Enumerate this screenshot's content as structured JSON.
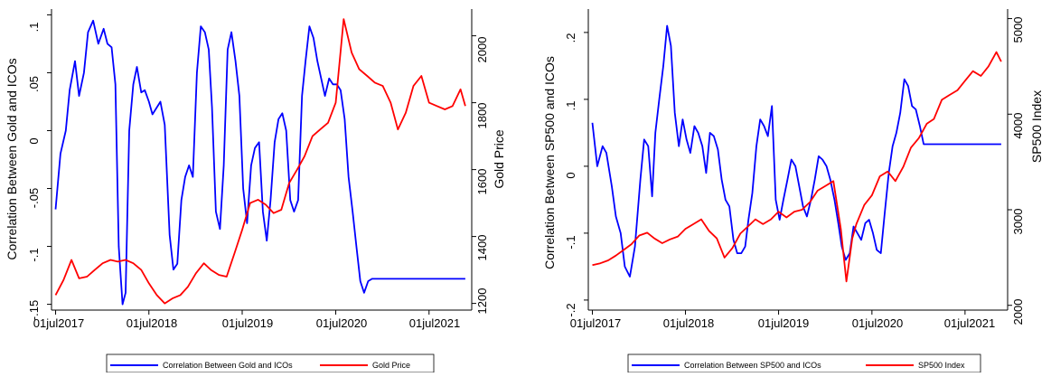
{
  "chart_data": [
    {
      "type": "line",
      "xlabel": "",
      "ylabel_left": "Correlation Between Gold and ICOs",
      "ylabel_right": "Gold Price",
      "x_ticks": [
        "01jul2017",
        "01jul2018",
        "01jul2019",
        "01jul2020",
        "01jul2021"
      ],
      "y_left_ticks": [
        ".1",
        ".05",
        "0",
        "-.05",
        "-.1",
        "-.15"
      ],
      "y_left_tick_values": [
        0.1,
        0.05,
        0,
        -0.05,
        -0.1,
        -0.15
      ],
      "y_right_ticks": [
        "2000",
        "1800",
        "1600",
        "1400",
        "1200"
      ],
      "y_right_tick_values": [
        2000,
        1800,
        1600,
        1400,
        1200
      ],
      "ylim_left": [
        -0.155,
        0.105
      ],
      "ylim_right": [
        1180,
        2080
      ],
      "xlim": [
        "2017-06-15",
        "2021-12-15"
      ],
      "grid": false,
      "legend_placement": "bottom",
      "series": [
        {
          "name": "Correlation Between Gold and ICOs",
          "axis": "left",
          "color": "#0000ff",
          "x": [
            "2017-07-01",
            "2017-07-20",
            "2017-08-10",
            "2017-08-25",
            "2017-09-15",
            "2017-10-01",
            "2017-10-20",
            "2017-11-05",
            "2017-11-25",
            "2017-12-15",
            "2018-01-05",
            "2018-01-20",
            "2018-02-05",
            "2018-02-20",
            "2018-03-05",
            "2018-03-20",
            "2018-04-01",
            "2018-04-15",
            "2018-05-01",
            "2018-05-15",
            "2018-06-01",
            "2018-06-15",
            "2018-07-01",
            "2018-07-15",
            "2018-08-01",
            "2018-08-15",
            "2018-09-01",
            "2018-09-20",
            "2018-10-05",
            "2018-10-20",
            "2018-11-05",
            "2018-11-20",
            "2018-12-05",
            "2018-12-20",
            "2019-01-05",
            "2019-01-20",
            "2019-02-05",
            "2019-02-20",
            "2019-03-05",
            "2019-03-20",
            "2019-04-05",
            "2019-04-20",
            "2019-05-05",
            "2019-05-20",
            "2019-06-05",
            "2019-06-20",
            "2019-07-05",
            "2019-07-20",
            "2019-08-05",
            "2019-08-20",
            "2019-09-05",
            "2019-09-20",
            "2019-10-05",
            "2019-10-20",
            "2019-11-05",
            "2019-11-20",
            "2019-12-05",
            "2019-12-20",
            "2020-01-05",
            "2020-01-20",
            "2020-02-05",
            "2020-02-20",
            "2020-03-05",
            "2020-03-20",
            "2020-04-05",
            "2020-04-20",
            "2020-05-05",
            "2020-05-20",
            "2020-06-05",
            "2020-06-20",
            "2020-07-05",
            "2020-07-20",
            "2020-08-05",
            "2020-08-20",
            "2020-09-05",
            "2020-09-20",
            "2020-10-05",
            "2020-10-20",
            "2020-11-05",
            "2020-11-20",
            "2020-12-05",
            "2020-12-20",
            "2021-01-05",
            "2021-01-20",
            "2021-02-05",
            "2021-02-20",
            "2021-03-05",
            "2021-03-20",
            "2021-04-05",
            "2021-04-20",
            "2021-05-05",
            "2021-05-20",
            "2021-06-05",
            "2021-06-20",
            "2021-07-05",
            "2021-07-20",
            "2021-08-05",
            "2021-08-20",
            "2021-09-05",
            "2021-09-20",
            "2021-10-05",
            "2021-10-20",
            "2021-11-05",
            "2021-11-20"
          ],
          "values": [
            -0.068,
            -0.02,
            0.0,
            0.035,
            0.06,
            0.03,
            0.05,
            0.085,
            0.095,
            0.075,
            0.088,
            0.075,
            0.072,
            0.04,
            -0.1,
            -0.15,
            -0.14,
            0.0,
            0.04,
            0.055,
            0.033,
            0.035,
            0.025,
            0.014,
            0.02,
            0.025,
            0.005,
            -0.09,
            -0.12,
            -0.115,
            -0.06,
            -0.04,
            -0.03,
            -0.04,
            0.05,
            0.09,
            0.085,
            0.07,
            0.02,
            -0.07,
            -0.085,
            -0.03,
            0.07,
            0.085,
            0.06,
            0.03,
            -0.05,
            -0.08,
            -0.03,
            -0.015,
            -0.01,
            -0.07,
            -0.095,
            -0.06,
            -0.01,
            0.01,
            0.015,
            0.0,
            -0.06,
            -0.07,
            -0.06,
            0.03,
            0.06,
            0.09,
            0.08,
            0.06,
            0.045,
            0.03,
            0.045,
            0.04,
            0.04,
            0.035,
            0.01,
            -0.04,
            -0.07,
            -0.1,
            -0.13,
            -0.14,
            -0.13,
            -0.128,
            -0.128,
            -0.128,
            -0.128,
            -0.128,
            -0.128,
            -0.128,
            -0.128,
            -0.128,
            -0.128,
            -0.128,
            -0.128,
            -0.128,
            -0.128,
            -0.128,
            -0.128,
            -0.128,
            -0.128,
            -0.128,
            -0.128,
            -0.128,
            -0.128,
            -0.128,
            -0.128,
            -0.128
          ]
        },
        {
          "name": "Gold Price",
          "axis": "right",
          "color": "#ff0000",
          "x": [
            "2017-07-01",
            "2017-08-01",
            "2017-09-01",
            "2017-10-01",
            "2017-11-01",
            "2017-12-01",
            "2018-01-01",
            "2018-02-01",
            "2018-03-01",
            "2018-04-01",
            "2018-05-01",
            "2018-06-01",
            "2018-07-01",
            "2018-08-01",
            "2018-09-01",
            "2018-10-01",
            "2018-11-01",
            "2018-12-01",
            "2019-01-01",
            "2019-02-01",
            "2019-03-01",
            "2019-04-01",
            "2019-05-01",
            "2019-06-01",
            "2019-07-01",
            "2019-08-01",
            "2019-09-01",
            "2019-10-01",
            "2019-11-01",
            "2019-12-01",
            "2020-01-01",
            "2020-02-01",
            "2020-03-01",
            "2020-04-01",
            "2020-05-01",
            "2020-06-01",
            "2020-07-01",
            "2020-08-01",
            "2020-09-01",
            "2020-10-01",
            "2020-11-01",
            "2020-12-01",
            "2021-01-01",
            "2021-02-01",
            "2021-03-01",
            "2021-04-01",
            "2021-05-01",
            "2021-06-01",
            "2021-07-01",
            "2021-08-01",
            "2021-09-01",
            "2021-10-01",
            "2021-11-01",
            "2021-11-20"
          ],
          "values": [
            1225,
            1270,
            1330,
            1275,
            1280,
            1300,
            1320,
            1330,
            1325,
            1330,
            1320,
            1300,
            1260,
            1225,
            1200,
            1215,
            1225,
            1250,
            1290,
            1320,
            1300,
            1285,
            1280,
            1350,
            1420,
            1500,
            1510,
            1495,
            1470,
            1480,
            1560,
            1600,
            1640,
            1700,
            1720,
            1740,
            1800,
            2050,
            1950,
            1900,
            1880,
            1860,
            1850,
            1800,
            1720,
            1770,
            1850,
            1880,
            1800,
            1790,
            1780,
            1790,
            1840,
            1790
          ]
        }
      ]
    },
    {
      "type": "line",
      "xlabel": "",
      "ylabel_left": "Correlation Between SP500 and ICOs",
      "ylabel_right": "SP500 Index",
      "x_ticks": [
        "01jul2017",
        "01jul2018",
        "01jul2019",
        "01jul2020",
        "01jul2021"
      ],
      "y_left_ticks": [
        ".2",
        ".1",
        "0",
        "-.1",
        "-.2"
      ],
      "y_left_tick_values": [
        0.2,
        0.1,
        0,
        -0.1,
        -0.2
      ],
      "y_right_ticks": [
        "5000",
        "4000",
        "3000",
        "2000"
      ],
      "y_right_tick_values": [
        5000,
        4000,
        3000,
        2000
      ],
      "ylim_left": [
        -0.215,
        0.235
      ],
      "ylim_right": [
        1950,
        5100
      ],
      "xlim": [
        "2017-06-15",
        "2021-12-15"
      ],
      "grid": false,
      "legend_placement": "bottom",
      "series": [
        {
          "name": "Correlation Between SP500 and ICOs",
          "axis": "left",
          "color": "#0000ff",
          "x": [
            "2017-07-01",
            "2017-07-20",
            "2017-08-10",
            "2017-08-25",
            "2017-09-15",
            "2017-10-01",
            "2017-10-20",
            "2017-11-05",
            "2017-11-25",
            "2017-12-15",
            "2018-01-05",
            "2018-01-20",
            "2018-02-05",
            "2018-02-20",
            "2018-03-05",
            "2018-03-20",
            "2018-04-05",
            "2018-04-20",
            "2018-05-05",
            "2018-05-20",
            "2018-06-05",
            "2018-06-20",
            "2018-07-05",
            "2018-07-20",
            "2018-08-05",
            "2018-08-20",
            "2018-09-05",
            "2018-09-20",
            "2018-10-05",
            "2018-10-20",
            "2018-11-05",
            "2018-11-20",
            "2018-12-05",
            "2018-12-20",
            "2019-01-05",
            "2019-01-20",
            "2019-02-05",
            "2019-02-20",
            "2019-03-05",
            "2019-03-20",
            "2019-04-05",
            "2019-04-20",
            "2019-05-05",
            "2019-05-20",
            "2019-06-05",
            "2019-06-20",
            "2019-07-05",
            "2019-07-20",
            "2019-08-05",
            "2019-08-20",
            "2019-09-05",
            "2019-09-20",
            "2019-10-05",
            "2019-10-20",
            "2019-11-05",
            "2019-11-20",
            "2019-12-05",
            "2019-12-20",
            "2020-01-05",
            "2020-01-20",
            "2020-02-05",
            "2020-02-20",
            "2020-03-05",
            "2020-03-20",
            "2020-04-05",
            "2020-04-20",
            "2020-05-05",
            "2020-05-20",
            "2020-06-05",
            "2020-06-20",
            "2020-07-05",
            "2020-07-20",
            "2020-08-05",
            "2020-08-20",
            "2020-09-05",
            "2020-09-20",
            "2020-10-05",
            "2020-10-20",
            "2020-11-05",
            "2020-11-20",
            "2020-12-05",
            "2020-12-20",
            "2021-01-05",
            "2021-01-20",
            "2021-02-05",
            "2021-02-20",
            "2021-03-05",
            "2021-03-20",
            "2021-04-05",
            "2021-04-20",
            "2021-05-05",
            "2021-05-20",
            "2021-06-05",
            "2021-06-20",
            "2021-07-05",
            "2021-07-20",
            "2021-08-05",
            "2021-08-20",
            "2021-09-05",
            "2021-09-20",
            "2021-10-05",
            "2021-10-20",
            "2021-11-05",
            "2021-11-20"
          ],
          "values": [
            0.065,
            0.0,
            0.03,
            0.02,
            -0.03,
            -0.075,
            -0.1,
            -0.15,
            -0.165,
            -0.12,
            -0.02,
            0.04,
            0.03,
            -0.045,
            0.05,
            0.1,
            0.15,
            0.21,
            0.18,
            0.08,
            0.03,
            0.07,
            0.04,
            0.02,
            0.06,
            0.05,
            0.03,
            -0.01,
            0.05,
            0.045,
            0.025,
            -0.02,
            -0.05,
            -0.06,
            -0.11,
            -0.13,
            -0.13,
            -0.12,
            -0.08,
            -0.04,
            0.03,
            0.07,
            0.06,
            0.045,
            0.09,
            -0.05,
            -0.08,
            -0.05,
            -0.02,
            0.01,
            0.0,
            -0.03,
            -0.06,
            -0.075,
            -0.05,
            -0.02,
            0.015,
            0.01,
            0.0,
            -0.02,
            -0.05,
            -0.085,
            -0.12,
            -0.14,
            -0.13,
            -0.09,
            -0.1,
            -0.11,
            -0.085,
            -0.08,
            -0.1,
            -0.125,
            -0.13,
            -0.07,
            -0.01,
            0.03,
            0.05,
            0.08,
            0.13,
            0.12,
            0.09,
            0.085,
            0.06,
            0.033,
            0.033,
            0.033,
            0.033,
            0.033,
            0.033,
            0.033,
            0.033,
            0.033,
            0.033,
            0.033,
            0.033,
            0.033,
            0.033,
            0.033,
            0.033,
            0.033,
            0.033,
            0.033,
            0.033,
            0.033
          ]
        },
        {
          "name": "SP500 Index",
          "axis": "right",
          "color": "#ff0000",
          "x": [
            "2017-07-01",
            "2017-08-01",
            "2017-09-01",
            "2017-10-01",
            "2017-11-01",
            "2017-12-01",
            "2018-01-01",
            "2018-02-01",
            "2018-03-01",
            "2018-04-01",
            "2018-05-01",
            "2018-06-01",
            "2018-07-01",
            "2018-08-01",
            "2018-09-01",
            "2018-10-01",
            "2018-11-01",
            "2018-12-01",
            "2019-01-01",
            "2019-02-01",
            "2019-03-01",
            "2019-04-01",
            "2019-05-01",
            "2019-06-01",
            "2019-07-01",
            "2019-08-01",
            "2019-09-01",
            "2019-10-01",
            "2019-11-01",
            "2019-12-01",
            "2020-01-01",
            "2020-02-01",
            "2020-03-01",
            "2020-03-23",
            "2020-04-15",
            "2020-05-01",
            "2020-06-01",
            "2020-07-01",
            "2020-08-01",
            "2020-09-01",
            "2020-10-01",
            "2020-11-01",
            "2020-12-01",
            "2021-01-01",
            "2021-02-01",
            "2021-03-01",
            "2021-04-01",
            "2021-05-01",
            "2021-06-01",
            "2021-07-01",
            "2021-08-01",
            "2021-09-01",
            "2021-10-01",
            "2021-11-01",
            "2021-11-20"
          ],
          "values": [
            2420,
            2440,
            2470,
            2520,
            2580,
            2640,
            2730,
            2760,
            2700,
            2650,
            2690,
            2720,
            2800,
            2850,
            2900,
            2780,
            2700,
            2500,
            2600,
            2750,
            2820,
            2900,
            2850,
            2900,
            2980,
            2920,
            2980,
            3000,
            3080,
            3200,
            3250,
            3300,
            2800,
            2250,
            2700,
            2850,
            3050,
            3150,
            3350,
            3400,
            3300,
            3450,
            3650,
            3750,
            3900,
            3950,
            4150,
            4200,
            4250,
            4350,
            4450,
            4400,
            4500,
            4650,
            4550
          ]
        }
      ]
    }
  ]
}
